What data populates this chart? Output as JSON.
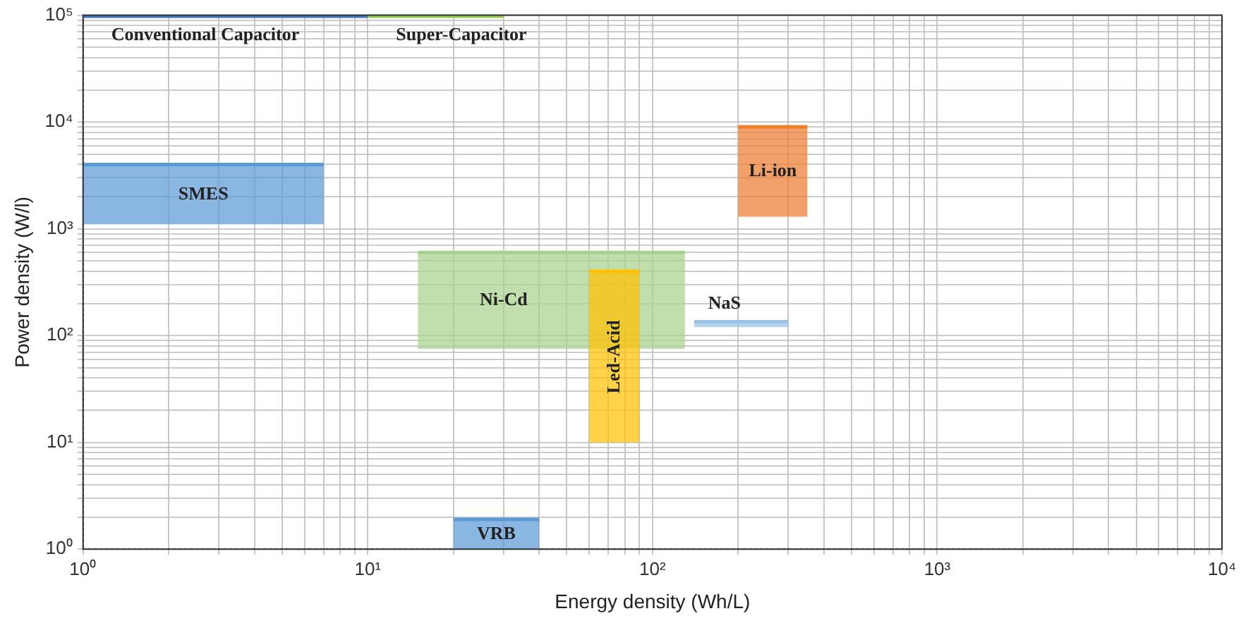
{
  "chart_data": {
    "type": "line",
    "xlabel": "Energy density (Wh/L)",
    "ylabel": "Power density (W/l)",
    "log": "xy",
    "grid": true,
    "legend": false,
    "xlim": [
      1,
      10000
    ],
    "ylim": [
      1,
      100000
    ],
    "xticks": [
      {
        "value": 1,
        "label": "10⁰"
      },
      {
        "value": 2,
        "label": null
      },
      {
        "value": 3,
        "label": null
      },
      {
        "value": 4,
        "label": null
      },
      {
        "value": 5,
        "label": null
      },
      {
        "value": 6,
        "label": null
      },
      {
        "value": 7,
        "label": null
      },
      {
        "value": 8,
        "label": null
      },
      {
        "value": 9,
        "label": null
      },
      {
        "value": 10,
        "label": "10¹"
      },
      {
        "value": 20,
        "label": null
      },
      {
        "value": 30,
        "label": null
      },
      {
        "value": 40,
        "label": null
      },
      {
        "value": 50,
        "label": null
      },
      {
        "value": 60,
        "label": null
      },
      {
        "value": 70,
        "label": null
      },
      {
        "value": 80,
        "label": null
      },
      {
        "value": 90,
        "label": null
      },
      {
        "value": 100,
        "label": "10²"
      },
      {
        "value": 200,
        "label": null
      },
      {
        "value": 300,
        "label": null
      },
      {
        "value": 400,
        "label": null
      },
      {
        "value": 500,
        "label": null
      },
      {
        "value": 600,
        "label": null
      },
      {
        "value": 700,
        "label": null
      },
      {
        "value": 800,
        "label": null
      },
      {
        "value": 900,
        "label": null
      },
      {
        "value": 1000,
        "label": "10³"
      },
      {
        "value": 2000,
        "label": null
      },
      {
        "value": 3000,
        "label": null
      },
      {
        "value": 4000,
        "label": null
      },
      {
        "value": 5000,
        "label": null
      },
      {
        "value": 6000,
        "label": null
      },
      {
        "value": 7000,
        "label": null
      },
      {
        "value": 8000,
        "label": null
      },
      {
        "value": 9000,
        "label": null
      },
      {
        "value": 10000,
        "label": "10⁴"
      }
    ],
    "yticks": [
      {
        "value": 1,
        "label": "10⁰"
      },
      {
        "value": 2,
        "label": null
      },
      {
        "value": 3,
        "label": null
      },
      {
        "value": 4,
        "label": null
      },
      {
        "value": 5,
        "label": null
      },
      {
        "value": 6,
        "label": null
      },
      {
        "value": 7,
        "label": null
      },
      {
        "value": 8,
        "label": null
      },
      {
        "value": 9,
        "label": null
      },
      {
        "value": 10,
        "label": "10¹"
      },
      {
        "value": 20,
        "label": null
      },
      {
        "value": 30,
        "label": null
      },
      {
        "value": 40,
        "label": null
      },
      {
        "value": 50,
        "label": null
      },
      {
        "value": 60,
        "label": null
      },
      {
        "value": 70,
        "label": null
      },
      {
        "value": 80,
        "label": null
      },
      {
        "value": 90,
        "label": null
      },
      {
        "value": 100,
        "label": "10²"
      },
      {
        "value": 200,
        "label": null
      },
      {
        "value": 300,
        "label": null
      },
      {
        "value": 400,
        "label": null
      },
      {
        "value": 500,
        "label": null
      },
      {
        "value": 600,
        "label": null
      },
      {
        "value": 700,
        "label": null
      },
      {
        "value": 800,
        "label": null
      },
      {
        "value": 900,
        "label": null
      },
      {
        "value": 1000,
        "label": "10³"
      },
      {
        "value": 2000,
        "label": null
      },
      {
        "value": 3000,
        "label": null
      },
      {
        "value": 4000,
        "label": null
      },
      {
        "value": 5000,
        "label": null
      },
      {
        "value": 6000,
        "label": null
      },
      {
        "value": 7000,
        "label": null
      },
      {
        "value": 8000,
        "label": null
      },
      {
        "value": 9000,
        "label": null
      },
      {
        "value": 10000,
        "label": "10⁴"
      },
      {
        "value": 20000,
        "label": null
      },
      {
        "value": 30000,
        "label": null
      },
      {
        "value": 40000,
        "label": null
      },
      {
        "value": 50000,
        "label": null
      },
      {
        "value": 60000,
        "label": null
      },
      {
        "value": 70000,
        "label": null
      },
      {
        "value": 80000,
        "label": null
      },
      {
        "value": 90000,
        "label": null
      },
      {
        "value": 100000,
        "label": "10⁵"
      }
    ],
    "series": [
      {
        "name": "Conventional Capacitor",
        "color": "#4472c4",
        "x": [
          1,
          10
        ],
        "values": [
          100000,
          100000
        ]
      },
      {
        "name": "Super-Capacitor",
        "color": "#92d050",
        "x": [
          10,
          30
        ],
        "values": [
          100000,
          100000
        ]
      },
      {
        "name": "SMES",
        "color": "#5b9bd5",
        "x": [
          1,
          7
        ],
        "values": [
          4000,
          4000
        ],
        "lower": [
          1100,
          1100
        ],
        "upper": [
          4000,
          4000
        ]
      },
      {
        "name": "Li-ion",
        "color": "#ed7d31",
        "x": [
          200,
          350
        ],
        "values": [
          9000,
          9000
        ],
        "lower": [
          1300,
          1300
        ],
        "upper": [
          9000,
          9000
        ]
      },
      {
        "name": "Ni-Cd",
        "color": "#a9d18e",
        "x": [
          15,
          130
        ],
        "values": [
          600,
          600
        ],
        "lower": [
          75,
          75
        ],
        "upper": [
          600,
          600
        ]
      },
      {
        "name": "Led-Acid",
        "color": "#ffc000",
        "x": [
          60,
          90
        ],
        "values": [
          400,
          400
        ],
        "lower": [
          10,
          10
        ],
        "upper": [
          400,
          400
        ]
      },
      {
        "name": "NaS",
        "color": "#9dc3e6",
        "x": [
          140,
          300
        ],
        "values": [
          135,
          135
        ],
        "lower": [
          120,
          120
        ],
        "upper": [
          135,
          135
        ]
      },
      {
        "name": "VRB",
        "color": "#5b9bd5",
        "x": [
          20,
          40
        ],
        "values": [
          1.9,
          1.9
        ],
        "lower": [
          1,
          1
        ],
        "upper": [
          1.9,
          1.9
        ]
      }
    ]
  }
}
